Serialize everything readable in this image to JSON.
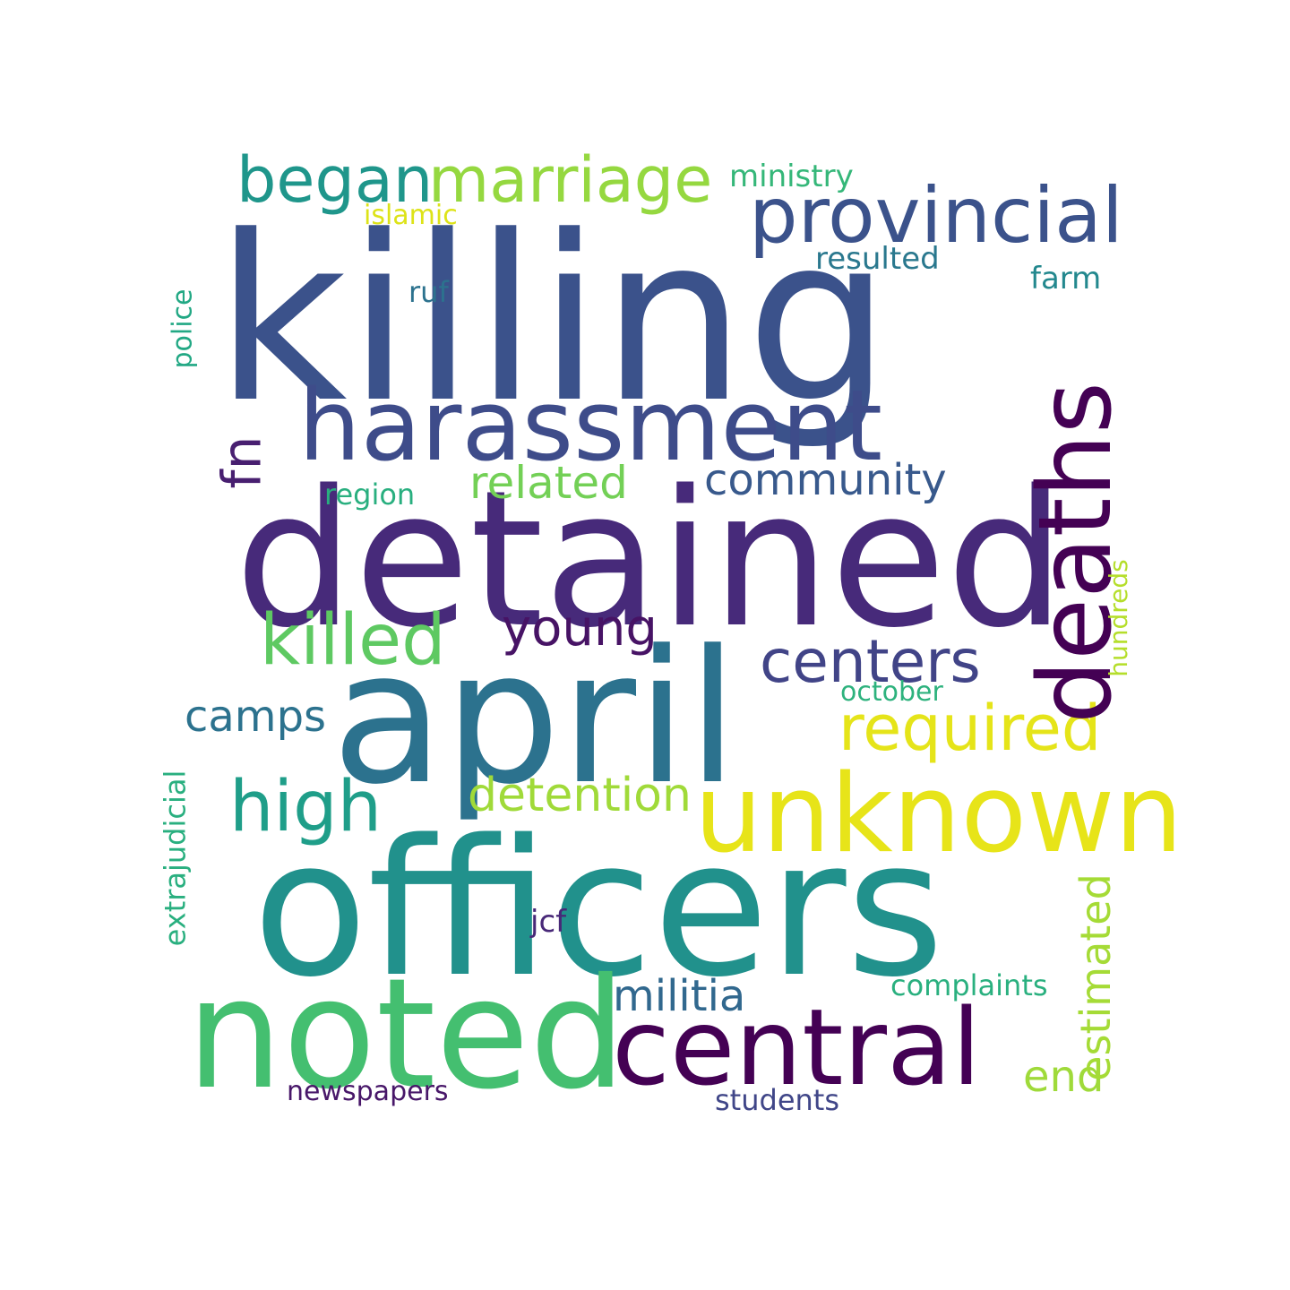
{
  "word_cloud": {
    "words": [
      {
        "text": "killing",
        "color": "#3b528b"
      },
      {
        "text": "detained",
        "color": "#472a7a"
      },
      {
        "text": "april",
        "color": "#2c728e"
      },
      {
        "text": "officers",
        "color": "#21918c"
      },
      {
        "text": "noted",
        "color": "#44bf70"
      },
      {
        "text": "harassment",
        "color": "#3e4c8a"
      },
      {
        "text": "deaths",
        "color": "#440154"
      },
      {
        "text": "unknown",
        "color": "#e7e419"
      },
      {
        "text": "central",
        "color": "#440154"
      },
      {
        "text": "provincial",
        "color": "#3b528b"
      },
      {
        "text": "marriage",
        "color": "#95d840"
      },
      {
        "text": "began",
        "color": "#1f968b"
      },
      {
        "text": "killed",
        "color": "#5ec962"
      },
      {
        "text": "young",
        "color": "#471365"
      },
      {
        "text": "centers",
        "color": "#414487"
      },
      {
        "text": "required",
        "color": "#e5e419"
      },
      {
        "text": "high",
        "color": "#1f9e89"
      },
      {
        "text": "camps",
        "color": "#2c728e"
      },
      {
        "text": "detention",
        "color": "#a0da39"
      },
      {
        "text": "related",
        "color": "#73d056"
      },
      {
        "text": "community",
        "color": "#38598c"
      },
      {
        "text": "fn",
        "color": "#481f70"
      },
      {
        "text": "militia",
        "color": "#31688e"
      },
      {
        "text": "estimated",
        "color": "#a5db36"
      },
      {
        "text": "end",
        "color": "#9fda3a"
      },
      {
        "text": "ministry",
        "color": "#35b779"
      },
      {
        "text": "islamic",
        "color": "#dde318"
      },
      {
        "text": "resulted",
        "color": "#2a788e"
      },
      {
        "text": "farm",
        "color": "#23888e"
      },
      {
        "text": "ruf",
        "color": "#2c728e"
      },
      {
        "text": "police",
        "color": "#22a884"
      },
      {
        "text": "region",
        "color": "#29af7f"
      },
      {
        "text": "hundreds",
        "color": "#b5de2b"
      },
      {
        "text": "october",
        "color": "#2db27d"
      },
      {
        "text": "extrajudicial",
        "color": "#29af7f"
      },
      {
        "text": "complaints",
        "color": "#2ab07f"
      },
      {
        "text": "jcf",
        "color": "#482878"
      },
      {
        "text": "newspapers",
        "color": "#481769"
      },
      {
        "text": "students",
        "color": "#404688"
      }
    ]
  }
}
